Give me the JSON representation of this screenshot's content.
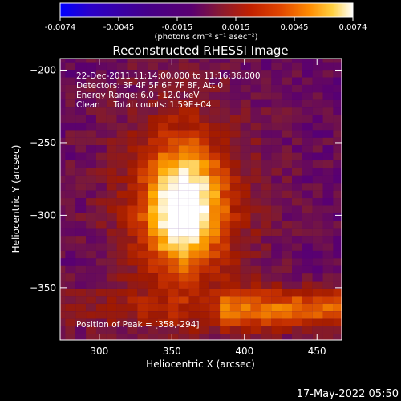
{
  "chart_data": {
    "type": "heatmap",
    "title": "Reconstructed RHESSI Image",
    "xlabel": "Heliocentric X (arcsec)",
    "ylabel": "Heliocentric Y (arcsec)",
    "xlim": [
      273,
      467
    ],
    "ylim": [
      -386,
      -192
    ],
    "xticks": [
      300,
      350,
      400,
      450
    ],
    "yticks": [
      -200,
      -250,
      -300,
      -350
    ],
    "colorbar": {
      "min": -0.0074,
      "max": 0.0074,
      "ticks": [
        "-0.0074",
        "-0.0045",
        "-0.0015",
        "0.0015",
        "0.0045",
        "0.0074"
      ],
      "units_label": "(photons cm⁻² s⁻¹ asec⁻²)"
    },
    "peak": [
      358,
      -294
    ],
    "colormap": [
      "#0000ff",
      "#2a00c8",
      "#460088",
      "#5a0070",
      "#7a1a3a",
      "#a01a00",
      "#c83200",
      "#ea6a00",
      "#ffaa00",
      "#ffe080",
      "#ffffff"
    ]
  },
  "annotations": {
    "time_range": "22-Dec-2011 11:14:00.000 to 11:16:36.000",
    "detectors": "Detectors: 3F 4F 5F 6F 7F 8F, Att 0",
    "energy_range": "Energy Range: 6.0 - 12.0 keV",
    "clean_counts": "Clean     Total counts: 1.59E+04",
    "peak_position": "Position of Peak = [358,-294]"
  },
  "footer": {
    "timestamp": "17-May-2022 05:50"
  }
}
